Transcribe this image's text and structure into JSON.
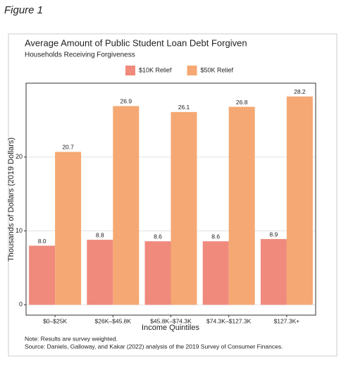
{
  "figure_label": "Figure 1",
  "chart_data": {
    "type": "bar",
    "title": "Average Amount of Public Student Loan Debt Forgiven",
    "subtitle": "Households Receiving Forgiveness",
    "x_label": "Income Quintiles",
    "y_label": "Thousands of Dollars (2019 Dollars)",
    "categories": [
      "$0–$25K",
      "$26K–$45.8K",
      "$45.8K–$74.3K",
      "$74.3K–$127.3K",
      "$127.3K+"
    ],
    "series": [
      {
        "name": "$10K Relief",
        "color": "#f08a7d",
        "values": [
          8.0,
          8.8,
          8.6,
          8.6,
          8.9
        ],
        "value_labels": [
          "8.0",
          "8.8",
          "8.6",
          "8.6",
          "8.9"
        ]
      },
      {
        "name": "$50K Relief",
        "color": "#f5a873",
        "values": [
          20.7,
          26.9,
          26.1,
          26.8,
          28.2
        ],
        "value_labels": [
          "20.7",
          "26.9",
          "26.1",
          "26.8",
          "28.2"
        ]
      }
    ],
    "ylim": [
      -1.4,
      30
    ],
    "yticks": [
      0,
      10,
      20
    ],
    "grid": true,
    "legend_position": "top",
    "notes": [
      "Note: Results are survey weighted.",
      "Source: Daniels, Galloway, and Kakar (2022) analysis of the 2019 Survey of Consumer Finances."
    ]
  }
}
